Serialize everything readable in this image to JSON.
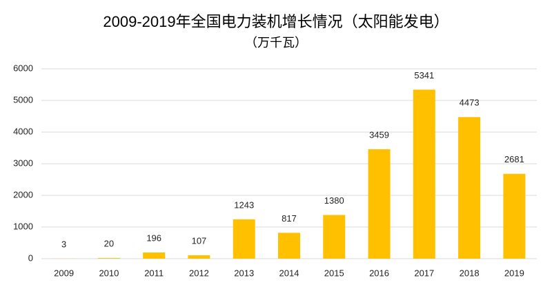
{
  "chart_data": {
    "type": "bar",
    "title": "2009-2019年全国电力装机增长情况（太阳能发电）",
    "subtitle": "（万千瓦）",
    "categories": [
      "2009",
      "2010",
      "2011",
      "2012",
      "2013",
      "2014",
      "2015",
      "2016",
      "2017",
      "2018",
      "2019"
    ],
    "values": [
      3,
      20,
      196,
      107,
      1243,
      817,
      1380,
      3459,
      5341,
      4473,
      2681
    ],
    "color": "#ffc000",
    "ylim": [
      0,
      6000
    ],
    "yticks": [
      0,
      1000,
      2000,
      3000,
      4000,
      5000,
      6000
    ],
    "grid": true
  }
}
